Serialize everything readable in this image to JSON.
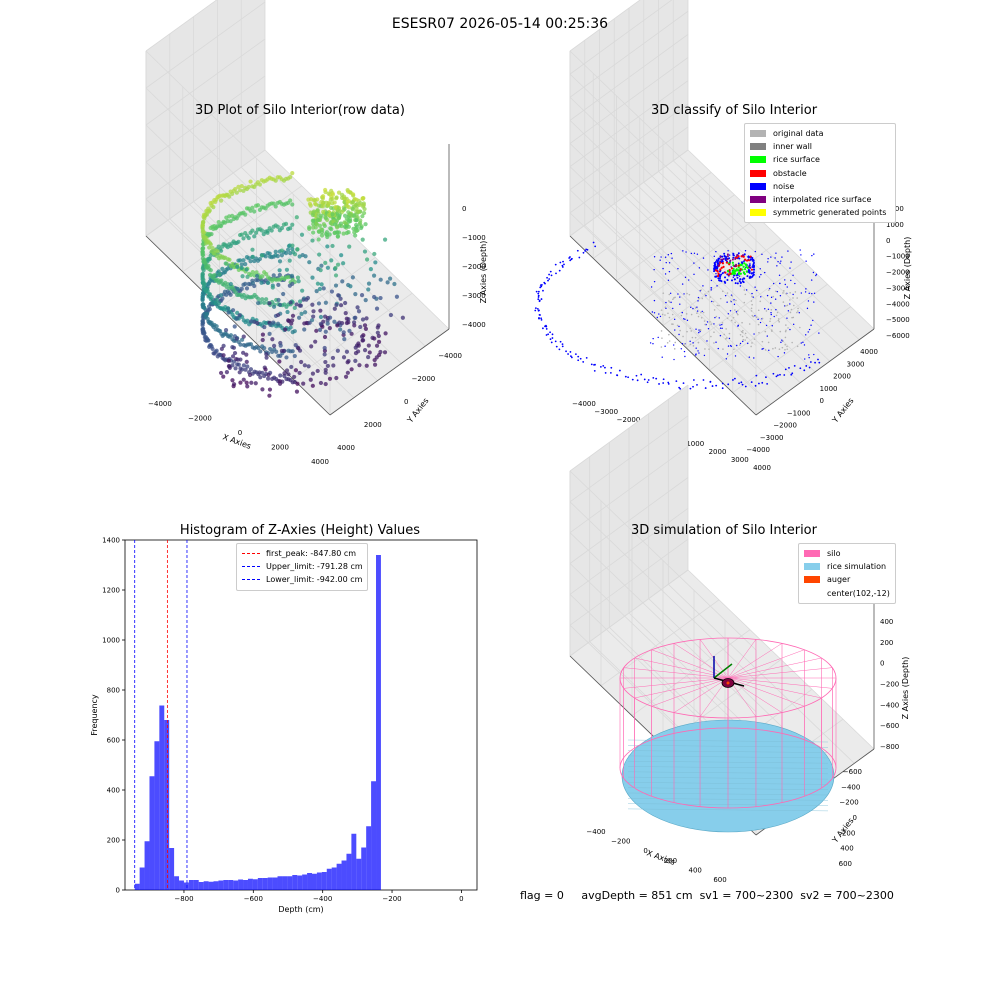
{
  "figure": {
    "suptitle": "ESESR07 2026-05-14 00:25:36",
    "status": {
      "flag": "flag = 0",
      "avg_depth": "avgDepth = 851 cm",
      "sv1": "sv1 = 700~2300",
      "sv2": "sv2 = 700~2300"
    }
  },
  "chart_data": [
    {
      "type": "scatter",
      "title": "3D Plot of Silo Interior(row data)",
      "xlabel": "X Axies",
      "ylabel": "Y Axies",
      "zlabel": "Z Axies (Depth)",
      "xticks": [
        -4000,
        -2000,
        0,
        2000,
        4000
      ],
      "yticks": [
        -4000,
        -2000,
        0,
        2000,
        4000
      ],
      "zticks": [
        0,
        -1000,
        -2000,
        -3000,
        -4000
      ],
      "xlim": [
        -4500,
        4500
      ],
      "ylim": [
        -4500,
        4500
      ],
      "zlim": [
        -4600,
        200
      ],
      "colormap": "viridis",
      "grid": true
    },
    {
      "type": "scatter",
      "title": "3D classify of Silo Interior",
      "xlabel": "X Axies",
      "ylabel": "Y Axies",
      "zlabel": "Z Axies (Depth)",
      "xticks": [
        -4000,
        -3000,
        -2000,
        -1000,
        0,
        1000,
        2000,
        3000,
        4000
      ],
      "yticks": [
        -4000,
        -3000,
        -2000,
        -1000,
        0,
        1000,
        2000,
        3000,
        4000
      ],
      "zticks": [
        2000,
        1000,
        0,
        -1000,
        -2000,
        -3000,
        -4000,
        -5000,
        -6000
      ],
      "legend": {
        "placement": "top-right",
        "entries": [
          {
            "label": "original data",
            "color": "#b3b3b3"
          },
          {
            "label": "inner wall",
            "color": "#808080"
          },
          {
            "label": "rice surface",
            "color": "#00ff00"
          },
          {
            "label": "obstacle",
            "color": "#ff0000"
          },
          {
            "label": "noise",
            "color": "#0000ff"
          },
          {
            "label": "interpolated rice surface",
            "color": "#800080"
          },
          {
            "label": "symmetric generated points",
            "color": "#ffff00"
          }
        ]
      },
      "grid": true
    },
    {
      "type": "bar",
      "title": "Histogram of Z-Axies (Height) Values",
      "xlabel": "Depth (cm)",
      "ylabel": "Frequency",
      "xlim": [
        -970,
        45
      ],
      "ylim": [
        0,
        1400
      ],
      "xticks": [
        -800,
        -600,
        -400,
        -200,
        0
      ],
      "yticks": [
        0,
        200,
        400,
        600,
        800,
        1000,
        1200,
        1400
      ],
      "bar_color": "#0000ff",
      "bins": {
        "start": -942,
        "width": 14.2,
        "counts": [
          25,
          90,
          195,
          455,
          595,
          738,
          680,
          168,
          55,
          38,
          30,
          40,
          40,
          32,
          35,
          33,
          35,
          38,
          40,
          40,
          38,
          42,
          40,
          45,
          43,
          48,
          48,
          50,
          50,
          55,
          55,
          55,
          60,
          58,
          62,
          68,
          65,
          70,
          72,
          85,
          90,
          105,
          118,
          145,
          225,
          125,
          170,
          255,
          435,
          1340
        ]
      },
      "reference_lines": [
        {
          "label": "first_peak: -847.80 cm",
          "value": -847.8,
          "color": "#ff0000"
        },
        {
          "label": "Upper_limit: -791.28 cm",
          "value": -791.28,
          "color": "#0000ff"
        },
        {
          "label": "Lower_limit: -942.00 cm",
          "value": -942.0,
          "color": "#0000ff"
        }
      ],
      "legend": {
        "placement": "top-center"
      },
      "grid": false
    },
    {
      "type": "scatter",
      "title": "3D simulation of Silo Interior",
      "xlabel": "X Axies",
      "ylabel": "Y Axies",
      "zlabel": "Z Axies (Depth)",
      "xticks": [
        -400,
        -200,
        0,
        200,
        400,
        600
      ],
      "yticks": [
        -600,
        -400,
        -200,
        0,
        200,
        400,
        600
      ],
      "zticks": [
        400,
        200,
        0,
        -200,
        -400,
        -600,
        -800
      ],
      "legend": {
        "placement": "top-right",
        "entries": [
          {
            "label": "silo",
            "color": "#ff69b4"
          },
          {
            "label": "rice simulation",
            "color": "#87ceeb"
          },
          {
            "label": "auger",
            "color": "#ff4500"
          },
          {
            "label": "center(102,-12)",
            "color": ""
          }
        ]
      },
      "grid": true
    }
  ]
}
